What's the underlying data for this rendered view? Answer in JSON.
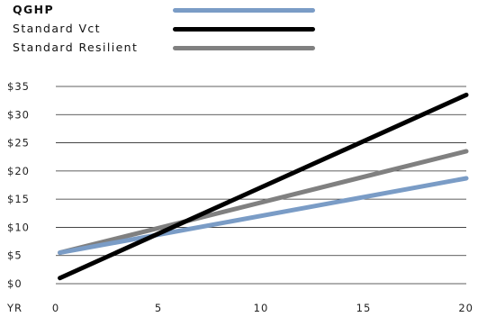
{
  "chart_data": {
    "type": "line",
    "x_unit_label": "YR",
    "xlim": [
      0,
      20
    ],
    "ylim": [
      0,
      35
    ],
    "x_ticks": [
      0,
      5,
      10,
      15,
      20
    ],
    "y_ticks": [
      0,
      5,
      10,
      15,
      20,
      25,
      30,
      35
    ],
    "y_tick_labels": [
      "$0",
      "$5",
      "$10",
      "$15",
      "$20",
      "$25",
      "$30",
      "$35"
    ],
    "grid": "horizontal",
    "legend_position": "top-left",
    "series": [
      {
        "name": "QGHP",
        "color": "#7a9cc6",
        "x": [
          0.2,
          20
        ],
        "y": [
          5.5,
          18.7
        ]
      },
      {
        "name": "Standard Vct",
        "color": "#000000",
        "x": [
          0.2,
          20
        ],
        "y": [
          1.0,
          33.5
        ]
      },
      {
        "name": "Standard Resilient",
        "color": "#808080",
        "x": [
          0.2,
          20
        ],
        "y": [
          5.5,
          23.5
        ]
      }
    ]
  }
}
